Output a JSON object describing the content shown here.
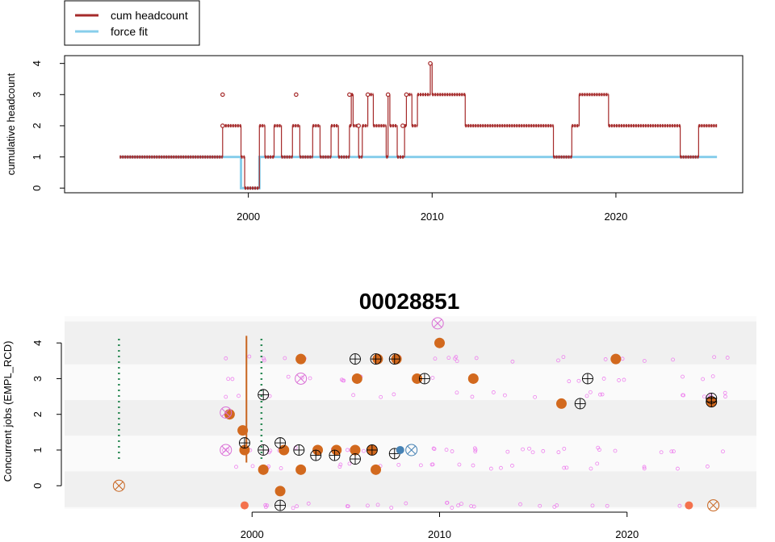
{
  "legend": {
    "entries": [
      {
        "label": "cum headcount",
        "color": "#a52a2a"
      },
      {
        "label": "force fit",
        "color": "#87ceeb"
      }
    ]
  },
  "chart_data": [
    {
      "type": "line",
      "title": "",
      "xlabel": "",
      "ylabel": "cumulative headcount",
      "xlim": [
        1990.0,
        2026.9
      ],
      "ylim": [
        -0.15,
        4.25
      ],
      "xticks": [
        2000,
        2010,
        2020
      ],
      "yticks": [
        0,
        1,
        2,
        3,
        4
      ],
      "legend_position": "top-left",
      "series": [
        {
          "name": "cum headcount",
          "color": "#a52a2a",
          "steps": [
            [
              1993.0,
              1
            ],
            [
              1998.6,
              2
            ],
            [
              1999.6,
              1
            ],
            [
              1999.8,
              0
            ],
            [
              2000.6,
              1
            ],
            [
              2000.6,
              2
            ],
            [
              2000.9,
              1
            ],
            [
              2001.4,
              2
            ],
            [
              2001.8,
              1
            ],
            [
              2002.4,
              2
            ],
            [
              2002.8,
              1
            ],
            [
              2003.5,
              2
            ],
            [
              2003.9,
              1
            ],
            [
              2004.5,
              2
            ],
            [
              2004.9,
              1
            ],
            [
              2005.5,
              2
            ],
            [
              2005.6,
              3
            ],
            [
              2005.7,
              2
            ],
            [
              2006.0,
              1
            ],
            [
              2006.2,
              2
            ],
            [
              2006.5,
              3
            ],
            [
              2006.8,
              2
            ],
            [
              2007.5,
              1
            ],
            [
              2007.6,
              3
            ],
            [
              2007.7,
              2
            ],
            [
              2008.1,
              1
            ],
            [
              2008.5,
              2
            ],
            [
              2008.6,
              3
            ],
            [
              2008.9,
              2
            ],
            [
              2009.2,
              3
            ],
            [
              2009.9,
              4
            ],
            [
              2010.0,
              3
            ],
            [
              2011.8,
              2
            ],
            [
              2016.6,
              1
            ],
            [
              2017.6,
              2
            ],
            [
              2018.0,
              3
            ],
            [
              2019.6,
              2
            ],
            [
              2023.5,
              1
            ],
            [
              2024.5,
              2
            ],
            [
              2025.5,
              2
            ]
          ]
        },
        {
          "name": "force fit",
          "color": "#87ceeb",
          "steps": [
            [
              1993.0,
              1
            ],
            [
              1999.6,
              0
            ],
            [
              2000.6,
              1
            ],
            [
              2025.5,
              1
            ]
          ]
        }
      ],
      "markers": {
        "color": "#a52a2a",
        "points": [
          [
            1998.6,
            2
          ],
          [
            1998.6,
            3
          ],
          [
            2002.6,
            3
          ],
          [
            2005.5,
            3
          ],
          [
            2006.0,
            2
          ],
          [
            2006.5,
            3
          ],
          [
            2007.6,
            3
          ],
          [
            2008.4,
            2
          ],
          [
            2008.6,
            3
          ],
          [
            2009.9,
            4
          ]
        ]
      }
    },
    {
      "type": "scatter",
      "title": "00028851",
      "xlabel": "",
      "ylabel": "Concurrent jobs (EMPL_RCD)",
      "xlim": [
        1990.0,
        2026.9
      ],
      "ylim": [
        -0.65,
        4.75
      ],
      "xticks": [
        2000,
        2010,
        2020
      ],
      "yticks": [
        0,
        1,
        2,
        3,
        4
      ],
      "bands": [
        [
          -0.6,
          0.4
        ],
        [
          1.4,
          2.4
        ],
        [
          3.4,
          4.6
        ]
      ],
      "vertical_lines": [
        {
          "x": 1992.9,
          "y0": 0.75,
          "y1": 4.2,
          "color": "#2e8b57",
          "style": "dotted"
        },
        {
          "x": 2000.5,
          "y0": 0.75,
          "y1": 4.2,
          "color": "#2e8b57",
          "style": "dotted"
        },
        {
          "x": 1999.7,
          "y0": 0.65,
          "y1": 4.2,
          "color": "#c8641e",
          "style": "solid"
        }
      ],
      "filled_points": [
        [
          1998.8,
          2
        ],
        [
          1999.5,
          1.55
        ],
        [
          1999.6,
          1
        ],
        [
          2000.6,
          0.45
        ],
        [
          2001.5,
          -0.15
        ],
        [
          2001.7,
          1
        ],
        [
          2002.6,
          0.45
        ],
        [
          2002.6,
          3.55
        ],
        [
          2003.5,
          1
        ],
        [
          2004.5,
          1
        ],
        [
          2005.5,
          1
        ],
        [
          2005.6,
          3
        ],
        [
          2006.4,
          1
        ],
        [
          2006.6,
          0.45
        ],
        [
          2006.7,
          3.55
        ],
        [
          2007.7,
          3.55
        ],
        [
          2008.8,
          3
        ],
        [
          2010.0,
          4
        ],
        [
          2011.8,
          3
        ],
        [
          2016.5,
          2.3
        ],
        [
          2019.4,
          3.55
        ],
        [
          2024.5,
          2.35
        ]
      ],
      "crossed_points": [
        [
          1999.6,
          1.2
        ],
        [
          2000.6,
          1
        ],
        [
          2000.6,
          2.55
        ],
        [
          2001.5,
          -0.55
        ],
        [
          2001.5,
          1.2
        ],
        [
          2002.5,
          1
        ],
        [
          2003.4,
          0.85
        ],
        [
          2004.4,
          0.85
        ],
        [
          2005.5,
          3.55
        ],
        [
          2005.5,
          0.75
        ],
        [
          2006.4,
          1
        ],
        [
          2006.6,
          3.55
        ],
        [
          2007.6,
          3.55
        ],
        [
          2007.6,
          0.9
        ],
        [
          2009.2,
          3
        ],
        [
          2017.5,
          2.3
        ],
        [
          2017.9,
          3
        ],
        [
          2024.5,
          2.45
        ],
        [
          2024.5,
          2.35
        ]
      ],
      "x_crossed_points": [
        {
          "x": 1992.9,
          "y": 0,
          "color": "#c8641e"
        },
        {
          "x": 1998.6,
          "y": 2.05,
          "color": "#da70d6"
        },
        {
          "x": 1998.6,
          "y": 1.0,
          "color": "#da70d6"
        },
        {
          "x": 2002.6,
          "y": 3.0,
          "color": "#da70d6"
        },
        {
          "x": 2008.5,
          "y": 1.0,
          "color": "#4682b4"
        },
        {
          "x": 2009.9,
          "y": 4.55,
          "color": "#da70d6"
        },
        {
          "x": 2024.6,
          "y": -0.55,
          "color": "#c8641e"
        }
      ],
      "special_points": [
        {
          "x": 1999.6,
          "y": -0.55,
          "color": "#f4724d"
        },
        {
          "x": 2007.9,
          "y": 1.0,
          "color": "#4682b4"
        },
        {
          "x": 2023.3,
          "y": -0.55,
          "color": "#f4724d"
        }
      ],
      "faint_points_color": "#ee82ee"
    }
  ]
}
